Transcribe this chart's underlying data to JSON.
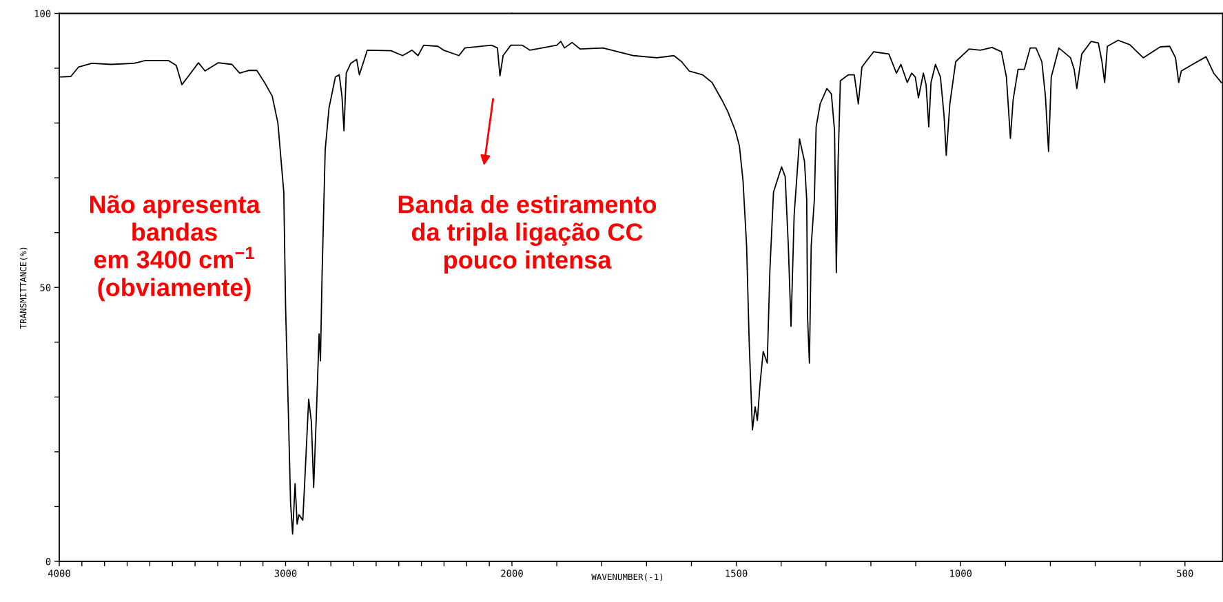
{
  "chart_data": [
    {
      "type": "line",
      "ylabel": "TRANSMITTANCE(%)",
      "color": "#000000",
      "grid": false,
      "marker": "none",
      "line_style": "solid",
      "xlim": [
        4000,
        2000
      ],
      "ylim": [
        0,
        100
      ],
      "xticks": [
        4000,
        {
          "value": 3900,
          "label": null
        },
        {
          "value": 3800,
          "label": null
        },
        {
          "value": 3700,
          "label": null
        },
        {
          "value": 3600,
          "label": null
        },
        {
          "value": 3500,
          "label": null
        },
        {
          "value": 3400,
          "label": null
        },
        {
          "value": 3300,
          "label": null
        },
        {
          "value": 3200,
          "label": null
        },
        {
          "value": 3100,
          "label": null
        },
        3000,
        {
          "value": 2900,
          "label": null
        },
        {
          "value": 2800,
          "label": null
        },
        {
          "value": 2700,
          "label": null
        },
        {
          "value": 2600,
          "label": null
        },
        {
          "value": 2500,
          "label": null
        },
        {
          "value": 2400,
          "label": null
        },
        {
          "value": 2300,
          "label": null
        },
        {
          "value": 2200,
          "label": null
        },
        {
          "value": 2100,
          "label": null
        }
      ],
      "yticks": [
        0,
        {
          "value": 10,
          "label": null
        },
        {
          "value": 20,
          "label": null
        },
        {
          "value": 30,
          "label": null
        },
        {
          "value": 40,
          "label": null
        },
        50,
        {
          "value": 60,
          "label": null
        },
        {
          "value": 70,
          "label": null
        },
        {
          "value": 80,
          "label": null
        },
        {
          "value": 90,
          "label": null
        },
        100
      ],
      "x": [
        4000,
        3949,
        3915,
        3856,
        3771,
        3669,
        3619,
        3517,
        3483,
        3458,
        3432,
        3385,
        3356,
        3297,
        3237,
        3203,
        3161,
        3127,
        3093,
        3059,
        3034,
        3008,
        3000,
        2988,
        2978,
        2969,
        2958,
        2949,
        2941,
        2924,
        2915,
        2898,
        2886,
        2876,
        2864,
        2852,
        2846,
        2839,
        2825,
        2808,
        2780,
        2763,
        2751,
        2742,
        2732,
        2712,
        2686,
        2674,
        2639,
        2534,
        2483,
        2441,
        2415,
        2390,
        2327,
        2302,
        2234,
        2208,
        2090,
        2064,
        2053,
        2039,
        2005,
        2000
      ],
      "values": [
        88.4,
        88.5,
        90.2,
        90.9,
        90.7,
        90.9,
        91.4,
        91.4,
        90.5,
        87.0,
        88.4,
        91.0,
        89.5,
        91.0,
        90.7,
        89.1,
        89.6,
        89.6,
        87.4,
        84.9,
        80.0,
        67.4,
        46.4,
        27.5,
        10.7,
        5.0,
        14.2,
        6.8,
        8.5,
        7.5,
        14.9,
        29.6,
        25.4,
        13.5,
        26.8,
        41.5,
        36.6,
        52.0,
        75.1,
        82.8,
        88.4,
        88.8,
        84.9,
        78.6,
        89.1,
        90.9,
        91.6,
        88.8,
        93.3,
        93.2,
        92.3,
        93.3,
        92.3,
        94.2,
        94.0,
        93.3,
        92.3,
        93.7,
        94.2,
        93.7,
        88.6,
        92.3,
        94.2,
        94.2
      ],
      "annotations": [
        "Não apresenta\nbandas\nem 3400 cm$^{−1}$\n(obviamente)",
        "Banda de estiramento\nda tripla ligação CC\npouco intensa"
      ]
    },
    {
      "type": "line",
      "xlabel": "WAVENUMBER(-1)",
      "color": "#000000",
      "grid": false,
      "marker": "none",
      "line_style": "solid",
      "tick_labels": "x",
      "xlim": [
        2000,
        416
      ],
      "ylim": [
        0,
        100
      ],
      "xticks": [
        2000,
        {
          "value": 1900,
          "label": null
        },
        {
          "value": 1800,
          "label": null
        },
        {
          "value": 1700,
          "label": null
        },
        {
          "value": 1600,
          "label": null
        },
        1500,
        {
          "value": 1400,
          "label": null
        },
        {
          "value": 1300,
          "label": null
        },
        {
          "value": 1200,
          "label": null
        },
        {
          "value": 1100,
          "label": null
        },
        1000,
        {
          "value": 900,
          "label": null
        },
        {
          "value": 800,
          "label": null
        },
        {
          "value": 700,
          "label": null
        },
        {
          "value": 600,
          "label": null
        },
        500
      ],
      "x": [
        2000,
        1977,
        1960,
        1900,
        1891,
        1883,
        1866,
        1848,
        1797,
        1729,
        1677,
        1639,
        1622,
        1605,
        1575,
        1554,
        1532,
        1519,
        1502,
        1493,
        1485,
        1477,
        1471,
        1464,
        1458,
        1453,
        1447,
        1440,
        1431,
        1425,
        1417,
        1399,
        1391,
        1384,
        1378,
        1371,
        1359,
        1348,
        1343,
        1341,
        1337,
        1333,
        1326,
        1322,
        1313,
        1298,
        1288,
        1281,
        1277,
        1273,
        1268,
        1250,
        1237,
        1228,
        1220,
        1211,
        1194,
        1160,
        1143,
        1133,
        1119,
        1109,
        1101,
        1094,
        1083,
        1077,
        1071,
        1066,
        1056,
        1045,
        1037,
        1032,
        1024,
        1011,
        981,
        956,
        930,
        909,
        898,
        889,
        883,
        872,
        858,
        845,
        832,
        819,
        811,
        804,
        798,
        781,
        755,
        747,
        741,
        730,
        709,
        693,
        685,
        679,
        673,
        649,
        623,
        593,
        555,
        534,
        521,
        514,
        508,
        487,
        453,
        436,
        419
      ],
      "values": [
        94.2,
        94.2,
        93.3,
        94.2,
        94.9,
        93.7,
        94.7,
        93.5,
        93.7,
        92.3,
        91.9,
        92.3,
        91.2,
        89.5,
        88.8,
        87.4,
        84.2,
        82.1,
        78.6,
        75.8,
        69.5,
        57.6,
        39.4,
        24.0,
        28.2,
        25.7,
        32.4,
        38.3,
        36.2,
        53.3,
        67.4,
        72.0,
        70.2,
        57.6,
        42.9,
        63.2,
        77.1,
        73.0,
        66.0,
        44.3,
        36.2,
        57.6,
        66.0,
        79.3,
        83.5,
        86.3,
        85.3,
        78.6,
        52.7,
        73.0,
        87.7,
        88.8,
        88.8,
        83.5,
        90.2,
        91.2,
        93.0,
        92.6,
        89.1,
        90.7,
        87.4,
        89.1,
        88.4,
        84.6,
        89.1,
        87.0,
        79.3,
        87.4,
        90.7,
        88.4,
        81.4,
        74.1,
        83.5,
        91.2,
        93.5,
        93.3,
        93.8,
        93.0,
        88.4,
        77.2,
        84.2,
        89.8,
        89.8,
        93.7,
        93.7,
        91.2,
        84.9,
        74.8,
        88.4,
        93.7,
        91.9,
        89.8,
        86.3,
        92.6,
        94.9,
        94.6,
        91.2,
        87.4,
        94.0,
        95.1,
        94.3,
        91.9,
        93.9,
        94.0,
        91.9,
        87.4,
        89.5,
        90.5,
        92.1,
        89.1,
        87.4
      ]
    }
  ]
}
